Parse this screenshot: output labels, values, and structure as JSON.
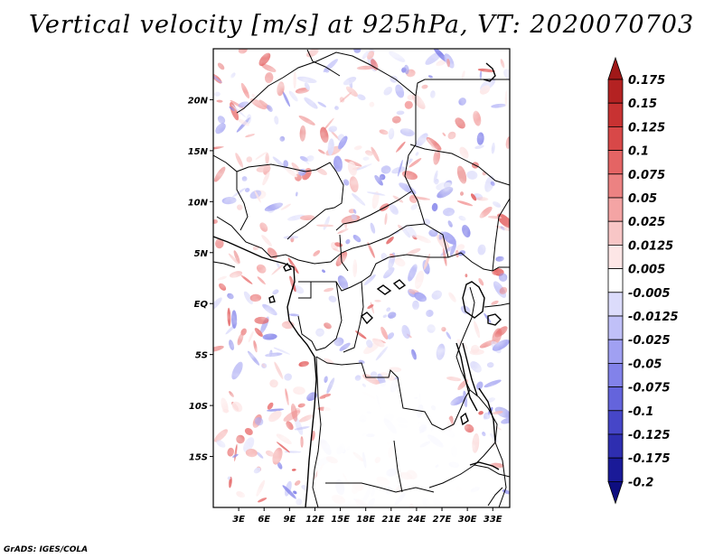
{
  "title": "Vertical velocity [m/s] at 925hPa, VT: 2020070703",
  "credit": "GrADS: IGES/COLA",
  "map": {
    "lat_range": [
      -20,
      25
    ],
    "lon_range": [
      0,
      35
    ],
    "lat_ticks": [
      {
        "value": 20,
        "label": "20N"
      },
      {
        "value": 15,
        "label": "15N"
      },
      {
        "value": 10,
        "label": "10N"
      },
      {
        "value": 5,
        "label": "5N"
      },
      {
        "value": 0,
        "label": "EQ"
      },
      {
        "value": -5,
        "label": "5S"
      },
      {
        "value": -10,
        "label": "10S"
      },
      {
        "value": -15,
        "label": "15S"
      }
    ],
    "lon_ticks": [
      {
        "value": 3,
        "label": "3E"
      },
      {
        "value": 6,
        "label": "6E"
      },
      {
        "value": 9,
        "label": "9E"
      },
      {
        "value": 12,
        "label": "12E"
      },
      {
        "value": 15,
        "label": "15E"
      },
      {
        "value": 18,
        "label": "18E"
      },
      {
        "value": 21,
        "label": "21E"
      },
      {
        "value": 24,
        "label": "24E"
      },
      {
        "value": 27,
        "label": "27E"
      },
      {
        "value": 30,
        "label": "30E"
      },
      {
        "value": 33,
        "label": "33E"
      }
    ]
  },
  "colorbar": {
    "levels": [
      "0.175",
      "0.15",
      "0.125",
      "0.1",
      "0.075",
      "0.05",
      "0.025",
      "0.0125",
      "0.005",
      "-0.005",
      "-0.0125",
      "-0.025",
      "-0.05",
      "-0.075",
      "-0.1",
      "-0.125",
      "-0.175",
      "-0.2"
    ],
    "colors": [
      "#a01818",
      "#b42222",
      "#c83232",
      "#d84848",
      "#e46464",
      "#ec8282",
      "#f4a4a4",
      "#f8c6c6",
      "#fde6e6",
      "#ffffff",
      "#dcdcfb",
      "#c0c0f8",
      "#a0a0f2",
      "#8282ea",
      "#6464dc",
      "#4646c8",
      "#2e2eb0",
      "#1a1a98",
      "#0e0e80"
    ]
  }
}
